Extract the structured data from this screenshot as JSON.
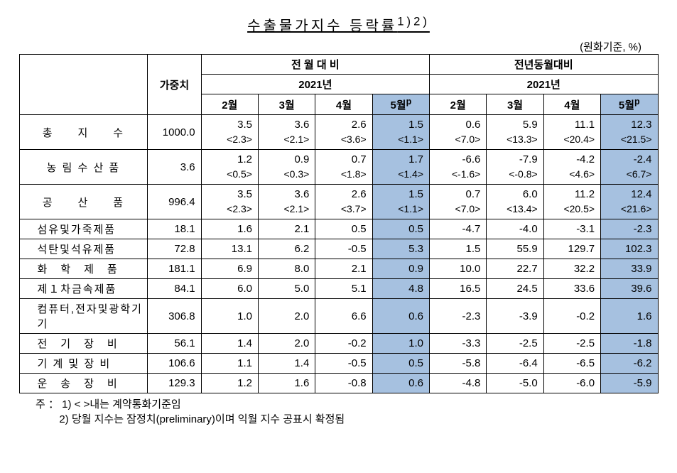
{
  "title": "수출물가지수 등락률",
  "title_sup": "1)2)",
  "unit": "(원화기준, %)",
  "header": {
    "weight": "가중치",
    "mom": "전 월 대 비",
    "yoy": "전년동월대비",
    "year": "2021년",
    "months": [
      "2월",
      "3월",
      "4월",
      "5월"
    ],
    "month_sup": "p"
  },
  "rows": [
    {
      "label": "총　　지　　수",
      "weight": "1000.0",
      "mom": [
        "3.5",
        "3.6",
        "2.6",
        "1.5"
      ],
      "mom_b": [
        "<2.3>",
        "<2.1>",
        "<3.6>",
        "<1.1>"
      ],
      "yoy": [
        "0.6",
        "5.9",
        "11.1",
        "12.3"
      ],
      "yoy_b": [
        "<7.0>",
        "<13.3>",
        "<20.4>",
        "<21.5>"
      ],
      "dual": true
    },
    {
      "label": "농 림 수 산 품",
      "weight": "3.6",
      "mom": [
        "1.2",
        "0.9",
        "0.7",
        "1.7"
      ],
      "mom_b": [
        "<0.5>",
        "<0.3>",
        "<1.8>",
        "<1.4>"
      ],
      "yoy": [
        "-6.6",
        "-7.9",
        "-4.2",
        "-2.4"
      ],
      "yoy_b": [
        "<-1.6>",
        "<-0.8>",
        "<4.6>",
        "<6.7>"
      ],
      "dual": true
    },
    {
      "label": "공　　산　　품",
      "weight": "996.4",
      "mom": [
        "3.5",
        "3.6",
        "2.6",
        "1.5"
      ],
      "mom_b": [
        "<2.3>",
        "<2.1>",
        "<3.7>",
        "<1.1>"
      ],
      "yoy": [
        "0.7",
        "6.0",
        "11.2",
        "12.4"
      ],
      "yoy_b": [
        "<7.0>",
        "<13.4>",
        "<20.5>",
        "<21.6>"
      ],
      "dual": true
    },
    {
      "label": "섬유및가죽제품",
      "sub": true,
      "weight": "18.1",
      "mom": [
        "1.6",
        "2.1",
        "0.5",
        "0.5"
      ],
      "yoy": [
        "-4.7",
        "-4.0",
        "-3.1",
        "-2.3"
      ]
    },
    {
      "label": "석탄및석유제품",
      "sub": true,
      "weight": "72.8",
      "mom": [
        "13.1",
        "6.2",
        "-0.5",
        "5.3"
      ],
      "yoy": [
        "1.5",
        "55.9",
        "129.7",
        "102.3"
      ]
    },
    {
      "label": "화　학　제　품",
      "sub": true,
      "weight": "181.1",
      "mom": [
        "6.9",
        "8.0",
        "2.1",
        "0.9"
      ],
      "yoy": [
        "10.0",
        "22.7",
        "32.2",
        "33.9"
      ]
    },
    {
      "label": "제１차금속제품",
      "sub": true,
      "weight": "84.1",
      "mom": [
        "6.0",
        "5.0",
        "5.1",
        "4.8"
      ],
      "yoy": [
        "16.5",
        "24.5",
        "33.6",
        "39.6"
      ]
    },
    {
      "label": "컴퓨터,전자및광학기기",
      "sub": true,
      "weight": "306.8",
      "mom": [
        "1.0",
        "2.0",
        "6.6",
        "0.6"
      ],
      "yoy": [
        "-2.3",
        "-3.9",
        "-0.2",
        "1.6"
      ]
    },
    {
      "label": "전　기　장　비",
      "sub": true,
      "weight": "56.1",
      "mom": [
        "1.4",
        "2.0",
        "-0.2",
        "1.0"
      ],
      "yoy": [
        "-3.3",
        "-2.5",
        "-2.5",
        "-1.8"
      ]
    },
    {
      "label": "기 계 및 장 비",
      "sub": true,
      "weight": "106.6",
      "mom": [
        "1.1",
        "1.4",
        "-0.5",
        "0.5"
      ],
      "yoy": [
        "-5.8",
        "-6.4",
        "-6.5",
        "-6.2"
      ]
    },
    {
      "label": "운　송　장　비",
      "sub": true,
      "weight": "129.3",
      "mom": [
        "1.2",
        "1.6",
        "-0.8",
        "0.6"
      ],
      "yoy": [
        "-4.8",
        "-5.0",
        "-6.0",
        "-5.9"
      ]
    }
  ],
  "notes": {
    "prefix": "주 ：",
    "n1": "1) < >내는 계약통화기준임",
    "n2": "2) 당월 지수는 잠정치(preliminary)이며 익월 지수 공표시 확정됨"
  }
}
